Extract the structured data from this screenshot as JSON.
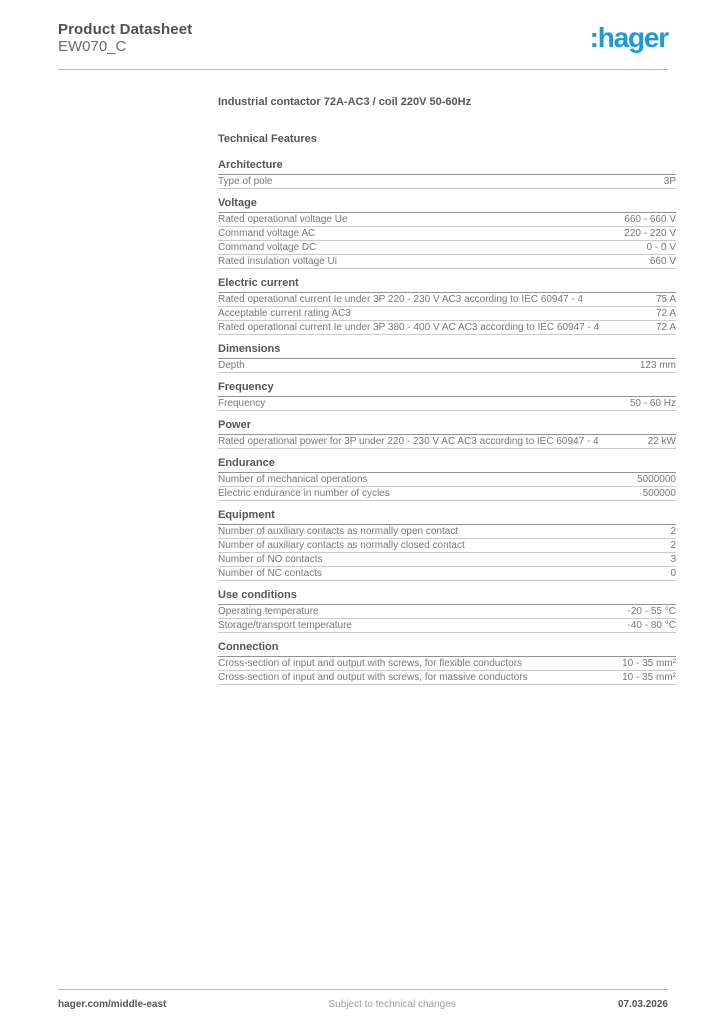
{
  "header": {
    "title": "Product Datasheet",
    "subtitle": "EW070_C",
    "logo_text": ":hager",
    "logo_color": "#1b9ad5"
  },
  "product": {
    "title": "Industrial contactor 72A-AC3 / coil 220V 50-60Hz",
    "features_heading": "Technical Features"
  },
  "sections": [
    {
      "title": "Architecture",
      "rows": [
        {
          "label": "Type of pole",
          "value": "3P"
        }
      ]
    },
    {
      "title": "Voltage",
      "rows": [
        {
          "label": "Rated operational voltage Ue",
          "value": "660 - 660 V"
        },
        {
          "label": "Command voltage AC",
          "value": "220 - 220 V"
        },
        {
          "label": "Command voltage DC",
          "value": "0 - 0 V"
        },
        {
          "label": "Rated insulation voltage Ui",
          "value": "660 V"
        }
      ]
    },
    {
      "title": "Electric current",
      "rows": [
        {
          "label": "Rated operational current Ie under 3P 220 - 230 V AC3 according to IEC 60947 - 4",
          "value": "75 A"
        },
        {
          "label": "Acceptable current rating AC3",
          "value": "72 A"
        },
        {
          "label": "Rated operational current Ie under 3P 380 - 400 V AC AC3 according to IEC 60947 - 4",
          "value": "72 A"
        }
      ]
    },
    {
      "title": "Dimensions",
      "rows": [
        {
          "label": "Depth",
          "value": "123 mm"
        }
      ]
    },
    {
      "title": "Frequency",
      "rows": [
        {
          "label": "Frequency",
          "value": "50 - 60 Hz"
        }
      ]
    },
    {
      "title": "Power",
      "rows": [
        {
          "label": "Rated operational power for 3P under 220 - 230 V AC AC3 according to IEC 60947 - 4",
          "value": "22 kW"
        }
      ]
    },
    {
      "title": "Endurance",
      "rows": [
        {
          "label": "Number of mechanical operations",
          "value": "5000000"
        },
        {
          "label": "Electric endurance in number of cycles",
          "value": "500000"
        }
      ]
    },
    {
      "title": "Equipment",
      "rows": [
        {
          "label": "Number of auxiliary contacts as normally open contact",
          "value": "2"
        },
        {
          "label": "Number of auxiliary contacts as normally closed contact",
          "value": "2"
        },
        {
          "label": "Number of NO contacts",
          "value": "3"
        },
        {
          "label": "Number of NC contacts",
          "value": "0"
        }
      ]
    },
    {
      "title": "Use conditions",
      "rows": [
        {
          "label": "Operating temperature",
          "value": "-20 - 55 °C"
        },
        {
          "label": "Storage/transport temperature",
          "value": "-40 - 80 °C"
        }
      ]
    },
    {
      "title": "Connection",
      "rows": [
        {
          "label": "Cross-section of input and output with screws, for flexible conductors",
          "value": "10 - 35 mm²"
        },
        {
          "label": "Cross-section of input and output with screws, for massive conductors",
          "value": "10 - 35 mm²"
        }
      ]
    }
  ],
  "footer": {
    "left": "hager.com/middle-east",
    "center": "Subject to technical changes",
    "right": "07.03.2026"
  }
}
